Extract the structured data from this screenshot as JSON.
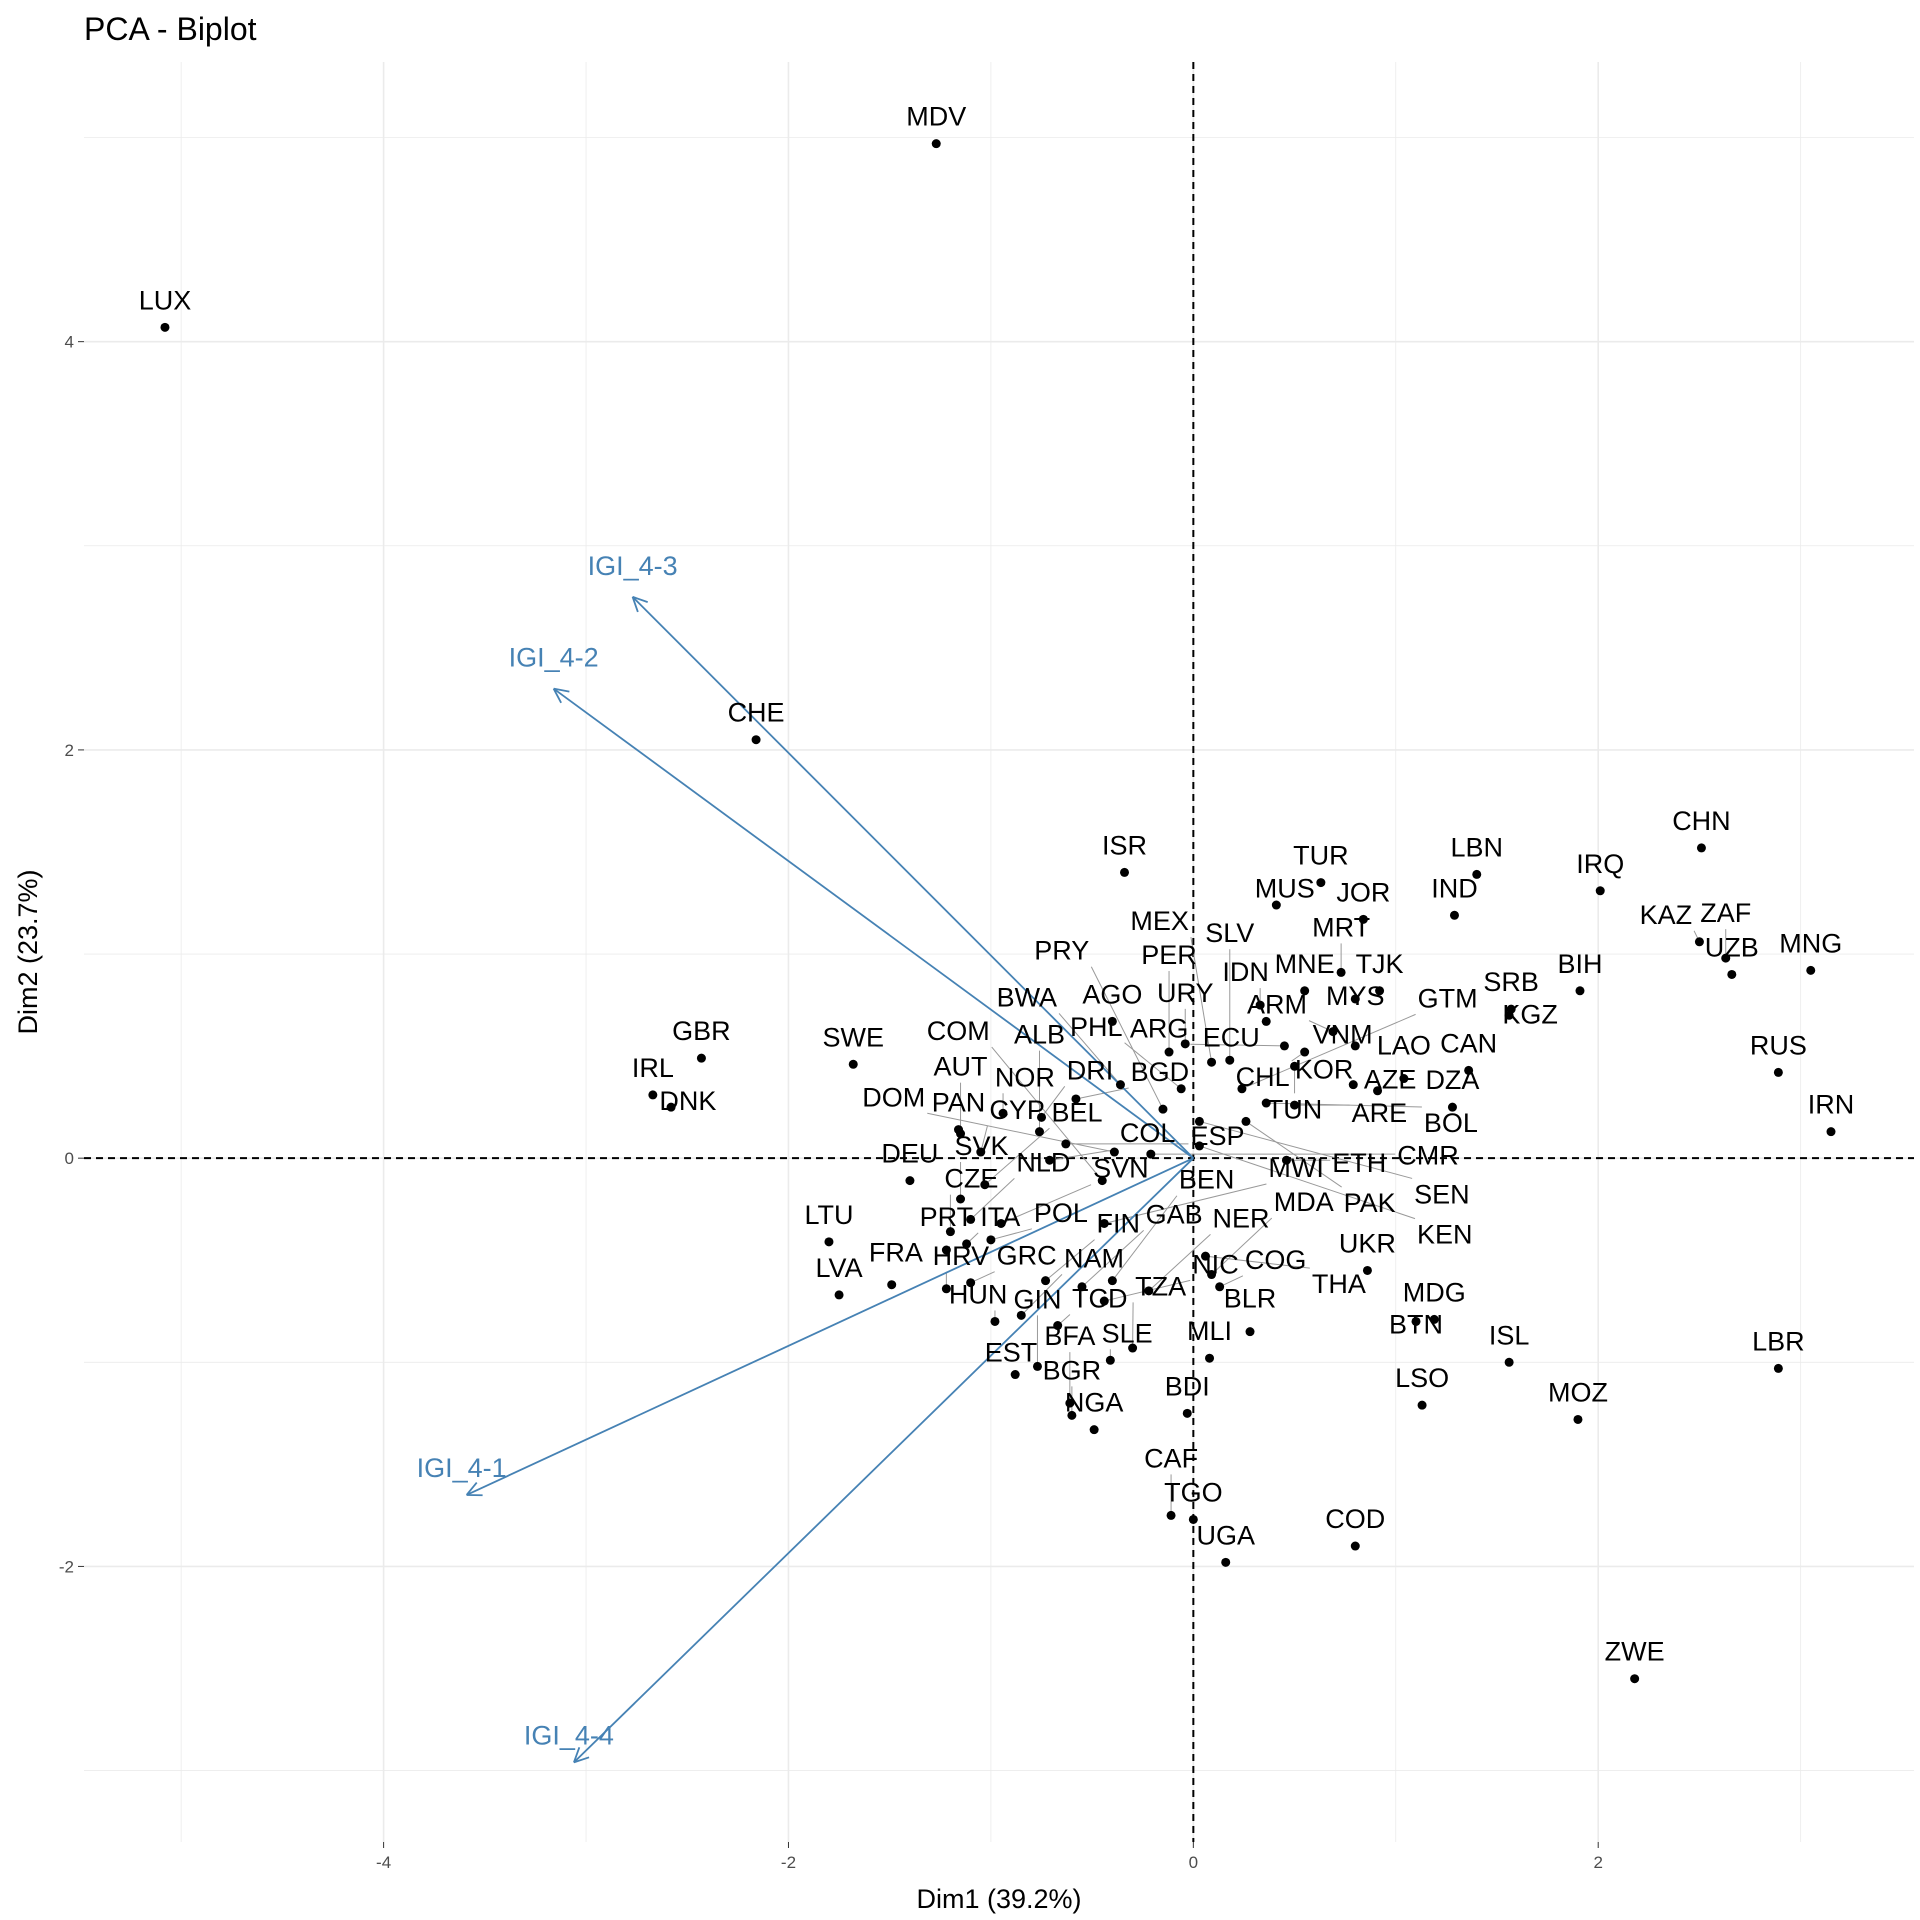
{
  "chart_data": {
    "type": "scatter",
    "title": "PCA - Biplot",
    "xlabel": "Dim1 (39.2%)",
    "ylabel": "Dim2 (23.7%)",
    "xlim": [
      -5.48,
      3.56
    ],
    "ylim": [
      -3.35,
      5.37
    ],
    "xticks": [
      -4,
      -2,
      0,
      2
    ],
    "yticks": [
      -2,
      0,
      2,
      4
    ],
    "grid": true,
    "colors": {
      "points": "#000000",
      "arrows": "#4682B4",
      "grid": "#EBEBEB"
    },
    "points": [
      {
        "label": "MDV",
        "x": -1.27,
        "y": 4.97
      },
      {
        "label": "LUX",
        "x": -5.08,
        "y": 4.07
      },
      {
        "label": "CHE",
        "x": -2.16,
        "y": 2.05
      },
      {
        "label": "ISR",
        "x": -0.34,
        "y": 1.4
      },
      {
        "label": "GBR",
        "x": -2.43,
        "y": 0.49
      },
      {
        "label": "SWE",
        "x": -1.68,
        "y": 0.46
      },
      {
        "label": "IRL",
        "x": -2.67,
        "y": 0.31
      },
      {
        "label": "DNK",
        "x": -2.58,
        "y": 0.25
      },
      {
        "label": "CHN",
        "x": 2.51,
        "y": 1.52
      },
      {
        "label": "IRQ",
        "x": 2.01,
        "y": 1.31
      },
      {
        "label": "KAZ",
        "x": 2.5,
        "y": 1.06
      },
      {
        "label": "ZAF",
        "x": 2.63,
        "y": 0.98
      },
      {
        "label": "UZB",
        "x": 2.66,
        "y": 0.9
      },
      {
        "label": "MNG",
        "x": 3.05,
        "y": 0.92
      },
      {
        "label": "RUS",
        "x": 2.89,
        "y": 0.42
      },
      {
        "label": "IRN",
        "x": 3.15,
        "y": 0.13
      },
      {
        "label": "BIH",
        "x": 1.91,
        "y": 0.82
      },
      {
        "label": "SRB",
        "x": 1.57,
        "y": 0.73
      },
      {
        "label": "KGZ",
        "x": 1.56,
        "y": 0.7
      },
      {
        "label": "LBN",
        "x": 1.4,
        "y": 1.39
      },
      {
        "label": "IND",
        "x": 1.29,
        "y": 1.19
      },
      {
        "label": "TUR",
        "x": 0.63,
        "y": 1.35
      },
      {
        "label": "MUS",
        "x": 0.41,
        "y": 1.24
      },
      {
        "label": "JOR",
        "x": 0.84,
        "y": 1.17
      },
      {
        "label": "MRT",
        "x": 0.73,
        "y": 0.91
      },
      {
        "label": "TJK",
        "x": 0.92,
        "y": 0.82
      },
      {
        "label": "MNE",
        "x": 0.55,
        "y": 0.82
      },
      {
        "label": "IDN",
        "x": 0.33,
        "y": 0.75
      },
      {
        "label": "MYS",
        "x": 0.8,
        "y": 0.78
      },
      {
        "label": "ECU",
        "x": 0.36,
        "y": 0.67
      },
      {
        "label": "ARM",
        "x": 0.69,
        "y": 0.62
      },
      {
        "label": "VNM",
        "x": 0.8,
        "y": 0.55
      },
      {
        "label": "CAN",
        "x": 1.36,
        "y": 0.43
      },
      {
        "label": "DZA",
        "x": 1.28,
        "y": 0.25
      },
      {
        "label": "LAO",
        "x": 1.04,
        "y": 0.39
      },
      {
        "label": "AZE",
        "x": 0.91,
        "y": 0.33
      },
      {
        "label": "KOR",
        "x": 0.79,
        "y": 0.36
      },
      {
        "label": "ARG",
        "x": 0.45,
        "y": 0.55
      },
      {
        "label": "CHL",
        "x": 0.55,
        "y": 0.52
      },
      {
        "label": "URY",
        "x": -0.04,
        "y": 0.56
      },
      {
        "label": "PER",
        "x": -0.12,
        "y": 0.52
      },
      {
        "label": "SLV",
        "x": 0.18,
        "y": 0.48
      },
      {
        "label": "MEX",
        "x": 0.09,
        "y": 0.47
      },
      {
        "label": "TUN",
        "x": 0.5,
        "y": 0.45
      },
      {
        "label": "AGO",
        "x": -0.4,
        "y": 0.67
      },
      {
        "label": "BWA",
        "x": -0.36,
        "y": 0.36
      },
      {
        "label": "BGD",
        "x": -0.58,
        "y": 0.29
      },
      {
        "label": "PHL",
        "x": -0.06,
        "y": 0.34
      },
      {
        "label": "GTM",
        "x": 0.24,
        "y": 0.34
      },
      {
        "label": "BOL",
        "x": 0.36,
        "y": 0.27
      },
      {
        "label": "PAK",
        "x": 0.26,
        "y": 0.18
      },
      {
        "label": "ARE",
        "x": 0.5,
        "y": 0.26
      },
      {
        "label": "ETH",
        "x": 0.46,
        "y": -0.01
      },
      {
        "label": "PRY",
        "x": -0.15,
        "y": 0.24
      },
      {
        "label": "SEN",
        "x": 0.03,
        "y": 0.18
      },
      {
        "label": "KEN",
        "x": 0.03,
        "y": 0.06
      },
      {
        "label": "NOR",
        "x": -0.94,
        "y": 0.22
      },
      {
        "label": "DRI",
        "x": -0.75,
        "y": 0.2
      },
      {
        "label": "PAN",
        "x": -1.16,
        "y": 0.14
      },
      {
        "label": "AUT",
        "x": -1.15,
        "y": 0.12
      },
      {
        "label": "ALB",
        "x": -0.76,
        "y": 0.13
      },
      {
        "label": "ESP",
        "x": -0.63,
        "y": 0.07
      },
      {
        "label": "DOM",
        "x": -0.39,
        "y": 0.03
      },
      {
        "label": "CMR",
        "x": -0.21,
        "y": 0.02
      },
      {
        "label": "CYP",
        "x": -1.05,
        "y": 0.03
      },
      {
        "label": "DEU",
        "x": -1.4,
        "y": -0.11
      },
      {
        "label": "COL",
        "x": -0.71,
        "y": -0.01
      },
      {
        "label": "COM",
        "x": -0.45,
        "y": -0.11
      },
      {
        "label": "MWI",
        "x": -0.44,
        "y": -0.32
      },
      {
        "label": "SVK",
        "x": -1.15,
        "y": -0.2
      },
      {
        "label": "BEL",
        "x": -1.03,
        "y": -0.13
      },
      {
        "label": "NLD",
        "x": -1.1,
        "y": -0.3
      },
      {
        "label": "SVN",
        "x": -0.95,
        "y": -0.32
      },
      {
        "label": "CZE",
        "x": -1.2,
        "y": -0.36
      },
      {
        "label": "POL",
        "x": -1.0,
        "y": -0.4
      },
      {
        "label": "ITA",
        "x": -1.12,
        "y": -0.42
      },
      {
        "label": "PRT",
        "x": -1.22,
        "y": -0.45
      },
      {
        "label": "LTU",
        "x": -1.8,
        "y": -0.41
      },
      {
        "label": "LVA",
        "x": -1.75,
        "y": -0.67
      },
      {
        "label": "FRA",
        "x": -1.49,
        "y": -0.62
      },
      {
        "label": "HRV",
        "x": -1.22,
        "y": -0.64
      },
      {
        "label": "GRC",
        "x": -1.1,
        "y": -0.61
      },
      {
        "label": "HUN",
        "x": -0.98,
        "y": -0.8
      },
      {
        "label": "NAM",
        "x": -0.85,
        "y": -0.77
      },
      {
        "label": "TCD",
        "x": -0.67,
        "y": -0.82
      },
      {
        "label": "FIN",
        "x": -0.73,
        "y": -0.6
      },
      {
        "label": "GAB",
        "x": -0.55,
        "y": -0.63
      },
      {
        "label": "BEN",
        "x": -0.4,
        "y": -0.6
      },
      {
        "label": "NER",
        "x": -0.22,
        "y": -0.65
      },
      {
        "label": "NIC",
        "x": -0.44,
        "y": -0.7
      },
      {
        "label": "THA",
        "x": 0.06,
        "y": -0.48
      },
      {
        "label": "MDA",
        "x": 0.09,
        "y": -0.57
      },
      {
        "label": "COG",
        "x": 0.13,
        "y": -0.63
      },
      {
        "label": "BLR",
        "x": 0.28,
        "y": -0.85
      },
      {
        "label": "UKR",
        "x": 0.86,
        "y": -0.55
      },
      {
        "label": "MDG",
        "x": 1.19,
        "y": -0.79
      },
      {
        "label": "BTN",
        "x": 1.1,
        "y": -0.8
      },
      {
        "label": "ISL",
        "x": 1.56,
        "y": -1.0
      },
      {
        "label": "LSO",
        "x": 1.13,
        "y": -1.21
      },
      {
        "label": "MOZ",
        "x": 1.9,
        "y": -1.28
      },
      {
        "label": "LBR",
        "x": 2.89,
        "y": -1.03
      },
      {
        "label": "ZWE",
        "x": 2.18,
        "y": -2.55
      },
      {
        "label": "COD",
        "x": 0.8,
        "y": -1.9
      },
      {
        "label": "UGA",
        "x": 0.16,
        "y": -1.98
      },
      {
        "label": "TGO",
        "x": 0.0,
        "y": -1.77
      },
      {
        "label": "CAF",
        "x": -0.11,
        "y": -1.75
      },
      {
        "label": "BDI",
        "x": -0.03,
        "y": -1.25
      },
      {
        "label": "MLI",
        "x": 0.08,
        "y": -0.98
      },
      {
        "label": "TZA",
        "x": -0.3,
        "y": -0.93
      },
      {
        "label": "SLE",
        "x": -0.41,
        "y": -0.99
      },
      {
        "label": "BFA",
        "x": -0.61,
        "y": -1.2
      },
      {
        "label": "BGR",
        "x": -0.6,
        "y": -1.26
      },
      {
        "label": "NGA",
        "x": -0.49,
        "y": -1.33
      },
      {
        "label": "GIN",
        "x": -0.77,
        "y": -1.02
      },
      {
        "label": "EST",
        "x": -0.88,
        "y": -1.06
      }
    ],
    "variables": [
      {
        "label": "IGI_4-3",
        "x": -2.77,
        "y": 2.75
      },
      {
        "label": "IGI_4-2",
        "x": -3.16,
        "y": 2.3
      },
      {
        "label": "IGI_4-1",
        "x": -3.59,
        "y": -1.65
      },
      {
        "label": "IGI_4-4",
        "x": -3.06,
        "y": -2.96
      }
    ]
  }
}
